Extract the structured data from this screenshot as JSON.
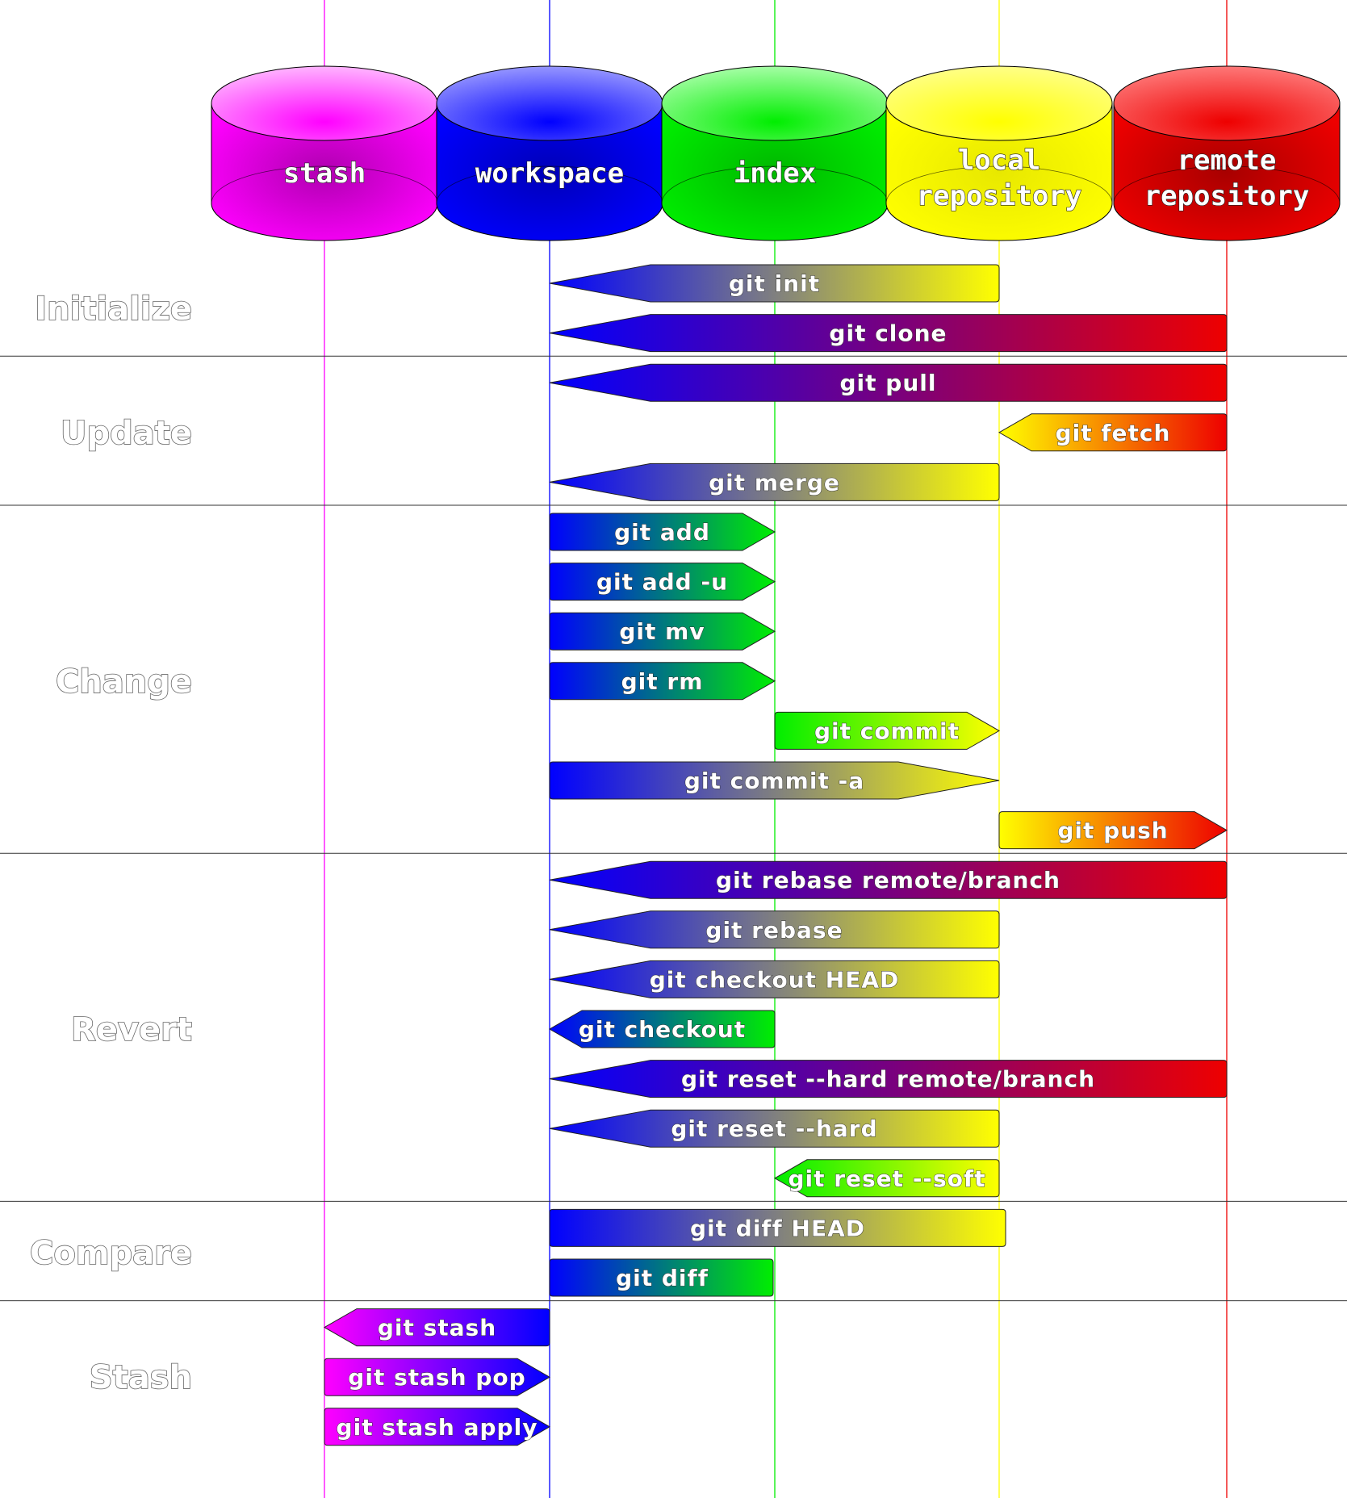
{
  "repos": [
    {
      "id": "stash",
      "label": [
        "stash"
      ],
      "color": "#ff00ff",
      "dark": "#b000b0",
      "light": "#ffc0ff"
    },
    {
      "id": "workspace",
      "label": [
        "workspace"
      ],
      "color": "#0000ff",
      "dark": "#0000b8",
      "light": "#a0a0ff"
    },
    {
      "id": "index",
      "label": [
        "index"
      ],
      "color": "#00ee00",
      "dark": "#00b800",
      "light": "#b0ffb0"
    },
    {
      "id": "local",
      "label": [
        "local",
        "repository"
      ],
      "color": "#ffff00",
      "dark": "#e8e800",
      "light": "#ffff90"
    },
    {
      "id": "remote",
      "label": [
        "remote",
        "repository"
      ],
      "color": "#ee0000",
      "dark": "#a80000",
      "light": "#ff8080"
    }
  ],
  "sections": [
    {
      "name": "Initialize",
      "commands": [
        {
          "label": "git init",
          "from": "local",
          "to": "workspace"
        },
        {
          "label": "git clone",
          "from": "remote",
          "to": "workspace"
        }
      ]
    },
    {
      "name": "Update",
      "commands": [
        {
          "label": "git pull",
          "from": "remote",
          "to": "workspace"
        },
        {
          "label": "git fetch",
          "from": "remote",
          "to": "local"
        },
        {
          "label": "git merge",
          "from": "local",
          "to": "workspace"
        }
      ]
    },
    {
      "name": "Change",
      "commands": [
        {
          "label": "git add",
          "from": "workspace",
          "to": "index"
        },
        {
          "label": "git add -u",
          "from": "workspace",
          "to": "index"
        },
        {
          "label": "git mv",
          "from": "workspace",
          "to": "index"
        },
        {
          "label": "git rm",
          "from": "workspace",
          "to": "index"
        },
        {
          "label": "git commit",
          "from": "index",
          "to": "local"
        },
        {
          "label": "git commit -a",
          "from": "workspace",
          "to": "local"
        },
        {
          "label": "git push",
          "from": "local",
          "to": "remote"
        }
      ]
    },
    {
      "name": "Revert",
      "commands": [
        {
          "label": "git rebase remote/branch",
          "from": "remote",
          "to": "workspace"
        },
        {
          "label": "git rebase",
          "from": "local",
          "to": "workspace"
        },
        {
          "label": "git checkout HEAD",
          "from": "local",
          "to": "workspace"
        },
        {
          "label": "git checkout",
          "from": "index",
          "to": "workspace"
        },
        {
          "label": "git reset --hard remote/branch",
          "from": "remote",
          "to": "workspace"
        },
        {
          "label": "git reset --hard",
          "from": "local",
          "to": "workspace"
        },
        {
          "label": "git reset --soft",
          "from": "local",
          "to": "index"
        }
      ]
    },
    {
      "name": "Compare",
      "commands": [
        {
          "label": "git diff HEAD",
          "from": "workspace",
          "to": "local",
          "arrow": false
        },
        {
          "label": "git diff",
          "from": "workspace",
          "to": "index",
          "arrow": false
        }
      ]
    },
    {
      "name": "Stash",
      "commands": [
        {
          "label": "git stash",
          "from": "workspace",
          "to": "stash"
        },
        {
          "label": "git stash pop",
          "from": "stash",
          "to": "workspace"
        },
        {
          "label": "git stash apply",
          "from": "stash",
          "to": "workspace"
        }
      ]
    }
  ]
}
